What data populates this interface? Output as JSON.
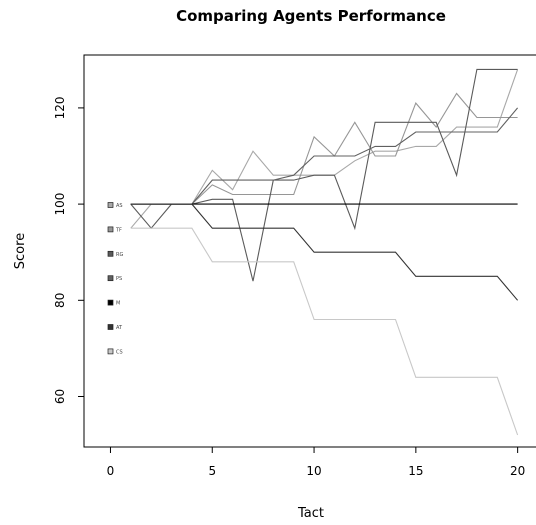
{
  "chart_data": {
    "type": "line",
    "title": "Comparing Agents Performance",
    "xlabel": "Tact",
    "ylabel": "Score",
    "xlim": [
      -1.3,
      21
    ],
    "ylim": [
      49.5,
      131
    ],
    "xticks": [
      0,
      5,
      10,
      15,
      20
    ],
    "yticks": [
      60,
      80,
      100,
      120
    ],
    "grid": false,
    "legend_position": "left",
    "series": [
      {
        "name": "AS",
        "color": "#a8a8a8",
        "x": [
          1,
          2,
          3,
          4,
          5,
          6,
          7,
          8,
          9,
          10,
          11,
          12,
          13,
          14,
          15,
          16,
          17,
          18,
          19,
          20
        ],
        "y": [
          95,
          100,
          100,
          100,
          107,
          103,
          111,
          106,
          106,
          106,
          106,
          109,
          111,
          111,
          112,
          112,
          116,
          116,
          116,
          128
        ]
      },
      {
        "name": "TF",
        "color": "#969696",
        "x": [
          1,
          2,
          3,
          4,
          5,
          6,
          7,
          8,
          9,
          10,
          11,
          12,
          13,
          14,
          15,
          16,
          17,
          18,
          19,
          20
        ],
        "y": [
          100,
          100,
          100,
          100,
          104,
          102,
          102,
          102,
          102,
          114,
          110,
          117,
          110,
          110,
          121,
          116,
          123,
          118,
          118,
          118
        ]
      },
      {
        "name": "RG",
        "color": "#5a5a5a",
        "x": [
          1,
          2,
          3,
          4,
          5,
          6,
          7,
          8,
          9,
          10,
          11,
          12,
          13,
          14,
          15,
          16,
          17,
          18,
          19,
          20
        ],
        "y": [
          100,
          95,
          100,
          100,
          101,
          101,
          84,
          105,
          105,
          106,
          106,
          95,
          117,
          117,
          117,
          117,
          106,
          128,
          128,
          128
        ]
      },
      {
        "name": "PS",
        "color": "#606060",
        "x": [
          1,
          2,
          3,
          4,
          5,
          6,
          7,
          8,
          9,
          10,
          11,
          12,
          13,
          14,
          15,
          16,
          17,
          18,
          19,
          20
        ],
        "y": [
          100,
          100,
          100,
          100,
          105,
          105,
          105,
          105,
          106,
          110,
          110,
          110,
          112,
          112,
          115,
          115,
          115,
          115,
          115,
          120
        ]
      },
      {
        "name": "M",
        "color": "#000000",
        "x": [
          1,
          2,
          3,
          4,
          5,
          6,
          7,
          8,
          9,
          10,
          11,
          12,
          13,
          14,
          15,
          16,
          17,
          18,
          19,
          20
        ],
        "y": [
          100,
          100,
          100,
          100,
          100,
          100,
          100,
          100,
          100,
          100,
          100,
          100,
          100,
          100,
          100,
          100,
          100,
          100,
          100,
          100
        ]
      },
      {
        "name": "AT",
        "color": "#333333",
        "x": [
          1,
          2,
          3,
          4,
          5,
          6,
          7,
          8,
          9,
          10,
          11,
          12,
          13,
          14,
          15,
          16,
          17,
          18,
          19,
          20
        ],
        "y": [
          100,
          100,
          100,
          100,
          95,
          95,
          95,
          95,
          95,
          90,
          90,
          90,
          90,
          90,
          85,
          85,
          85,
          85,
          85,
          80
        ]
      },
      {
        "name": "CS",
        "color": "#c8c8c8",
        "x": [
          1,
          2,
          3,
          4,
          5,
          6,
          7,
          8,
          9,
          10,
          11,
          12,
          13,
          14,
          15,
          16,
          17,
          18,
          19,
          20
        ],
        "y": [
          95,
          95,
          95,
          95,
          88,
          88,
          88,
          88,
          88,
          76,
          76,
          76,
          76,
          76,
          64,
          64,
          64,
          64,
          64,
          52
        ]
      }
    ]
  }
}
